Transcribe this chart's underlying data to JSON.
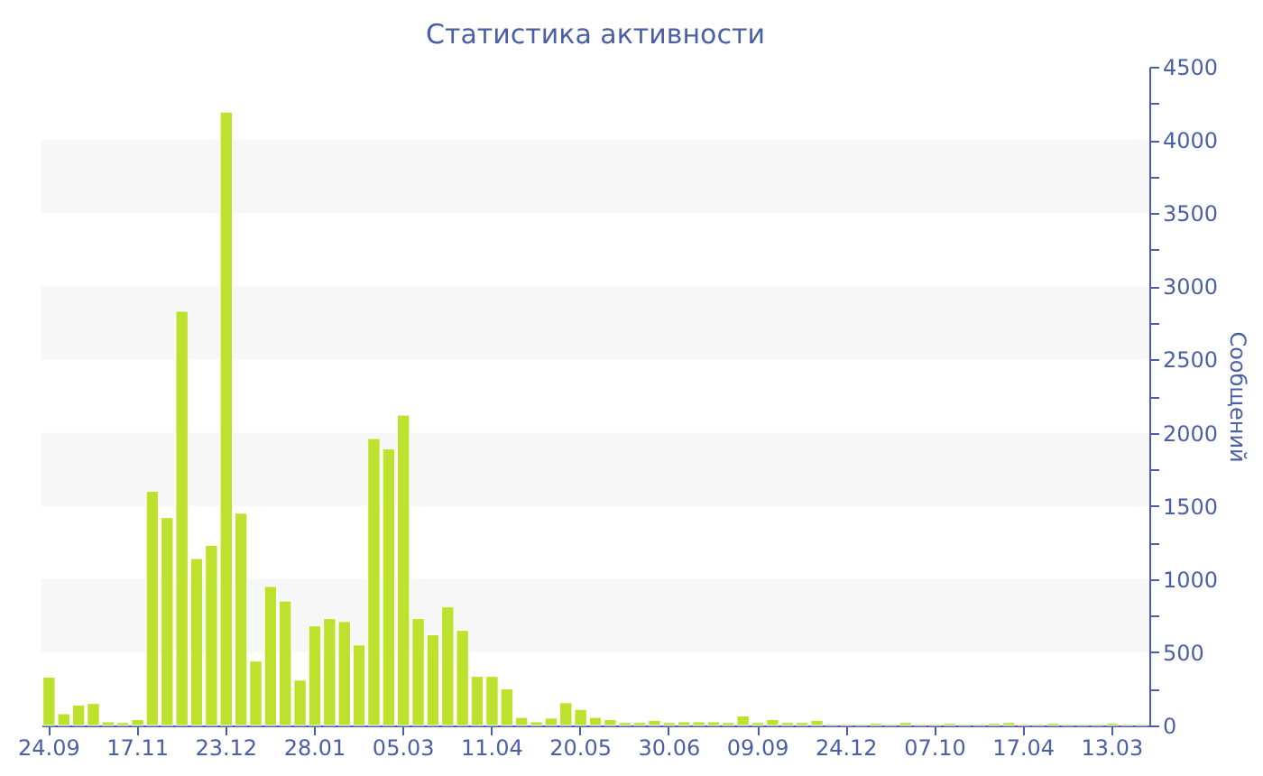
{
  "chart_data": {
    "type": "bar",
    "title": "Статистика активности",
    "ylabel": "Сообщений",
    "categories": [
      "24.09",
      null,
      null,
      null,
      null,
      null,
      "17.11",
      null,
      null,
      null,
      null,
      null,
      "23.12",
      null,
      null,
      null,
      null,
      null,
      "28.01",
      null,
      null,
      null,
      null,
      null,
      "05.03",
      null,
      null,
      null,
      null,
      null,
      "11.04",
      null,
      null,
      null,
      null,
      null,
      "20.05",
      null,
      null,
      null,
      null,
      null,
      "30.06",
      null,
      null,
      null,
      null,
      null,
      "09.09",
      null,
      null,
      null,
      null,
      null,
      "24.12",
      null,
      null,
      null,
      null,
      null,
      "07.10",
      null,
      null,
      null,
      null,
      null,
      "17.04",
      null,
      null,
      null,
      null,
      null,
      "13.03",
      null,
      null
    ],
    "series": [
      {
        "color": "#bde22e",
        "values": [
          330,
          80,
          140,
          150,
          25,
          20,
          40,
          1600,
          1420,
          2830,
          1140,
          1230,
          4190,
          1450,
          440,
          950,
          850,
          310,
          680,
          730,
          710,
          550,
          1960,
          1890,
          2120,
          730,
          620,
          810,
          650,
          335,
          335,
          250,
          55,
          25,
          50,
          155,
          110,
          55,
          40,
          20,
          20,
          35,
          20,
          25,
          25,
          25,
          20,
          65,
          20,
          40,
          20,
          20,
          35,
          10,
          10,
          10,
          15,
          10,
          20,
          10,
          10,
          15,
          10,
          10,
          15,
          20,
          10,
          10,
          15,
          10,
          10,
          10,
          15,
          10,
          10
        ]
      }
    ],
    "ylim": [
      0,
      4500
    ],
    "yticks": [
      0,
      {
        "value": 250,
        "label": null
      },
      500,
      {
        "value": 750,
        "label": null
      },
      1000,
      {
        "value": 1250,
        "label": null
      },
      1500,
      {
        "value": 1750,
        "label": null
      },
      2000,
      {
        "value": 2250,
        "label": null
      },
      2500,
      {
        "value": 2750,
        "label": null
      },
      3000,
      {
        "value": 3250,
        "label": null
      },
      3500,
      {
        "value": 3750,
        "label": null
      },
      4000,
      {
        "value": 4250,
        "label": null
      },
      4500
    ],
    "bands": [
      {
        "axis": "y",
        "from": 500,
        "to": 1000,
        "color": "#f7f7f7"
      },
      {
        "axis": "y",
        "from": 1500,
        "to": 2000,
        "color": "#f7f7f7"
      },
      {
        "axis": "y",
        "from": 2500,
        "to": 3000,
        "color": "#f7f7f7"
      },
      {
        "axis": "y",
        "from": 3500,
        "to": 4000,
        "color": "#f7f7f7"
      }
    ],
    "grid": false
  }
}
